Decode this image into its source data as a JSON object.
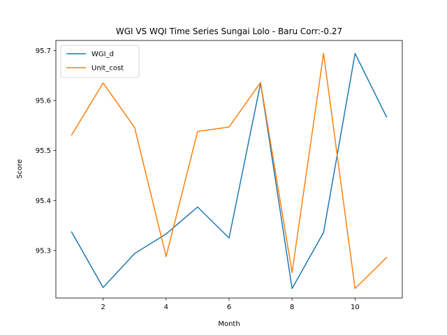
{
  "chart_data": {
    "type": "line",
    "title": "WGI VS WQI Time Series Sungai Lolo - Baru Corr:-0.27",
    "xlabel": "Month",
    "ylabel": "Score",
    "x": [
      1,
      2,
      3,
      4,
      5,
      6,
      7,
      8,
      9,
      10,
      11
    ],
    "xticks": [
      2,
      4,
      6,
      8,
      10
    ],
    "yticks": [
      95.3,
      95.4,
      95.5,
      95.6,
      95.7
    ],
    "xlim": [
      0.5,
      11.5
    ],
    "ylim": [
      95.205,
      95.72
    ],
    "grid": false,
    "legend_position": "top-left",
    "series": [
      {
        "name": "WGI_d",
        "color": "#1f77b4",
        "values": [
          95.337,
          95.226,
          95.294,
          95.333,
          95.387,
          95.325,
          95.635,
          95.224,
          95.336,
          95.694,
          95.567
        ]
      },
      {
        "name": "Unit_cost",
        "color": "#ff7f0e",
        "values": [
          95.531,
          95.635,
          95.546,
          95.288,
          95.538,
          95.547,
          95.636,
          95.256,
          95.694,
          95.224,
          95.286
        ]
      }
    ]
  }
}
